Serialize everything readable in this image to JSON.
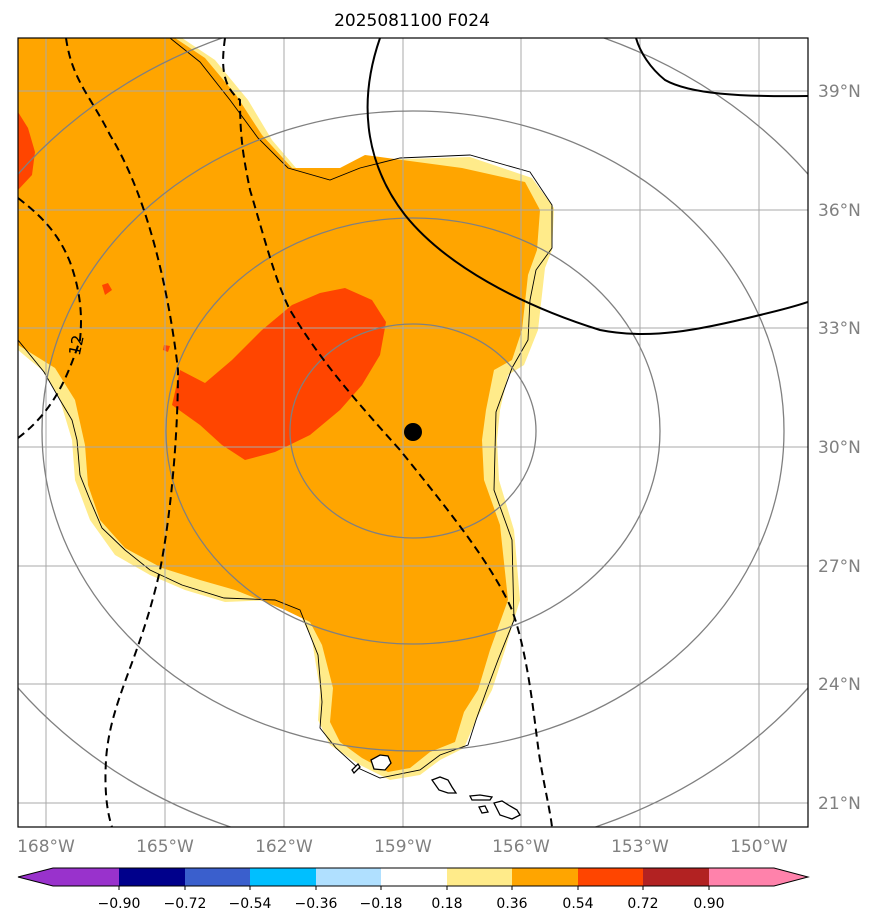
{
  "title": "2025081100 F024",
  "map": {
    "lon_labels": [
      "168°W",
      "165°W",
      "162°W",
      "159°W",
      "156°W",
      "153°W",
      "150°W"
    ],
    "lat_labels": [
      "39°N",
      "36°N",
      "33°N",
      "30°N",
      "27°N",
      "24°N",
      "21°N"
    ],
    "contour_label": "12",
    "center_marker": {
      "lon": -158.8,
      "lat": 30.4
    },
    "colors": {
      "gridline": "#a9a9a9",
      "range_ring": "#808080",
      "fill_light": "#ffeb8a",
      "fill_orange": "#ffa500",
      "fill_red": "#ff4500",
      "contour": "#000000"
    }
  },
  "colorbar": {
    "ticks": [
      "−0.90",
      "−0.72",
      "−0.54",
      "−0.36",
      "−0.18",
      "0.18",
      "0.36",
      "0.54",
      "0.72",
      "0.90"
    ],
    "colors": [
      "#9932cc",
      "#00008b",
      "#3a5fcd",
      "#00bfff",
      "#b0e0ff",
      "#ffffff",
      "#ffeb8a",
      "#ffa500",
      "#ff4500",
      "#b22222",
      "#ff82ab"
    ]
  }
}
